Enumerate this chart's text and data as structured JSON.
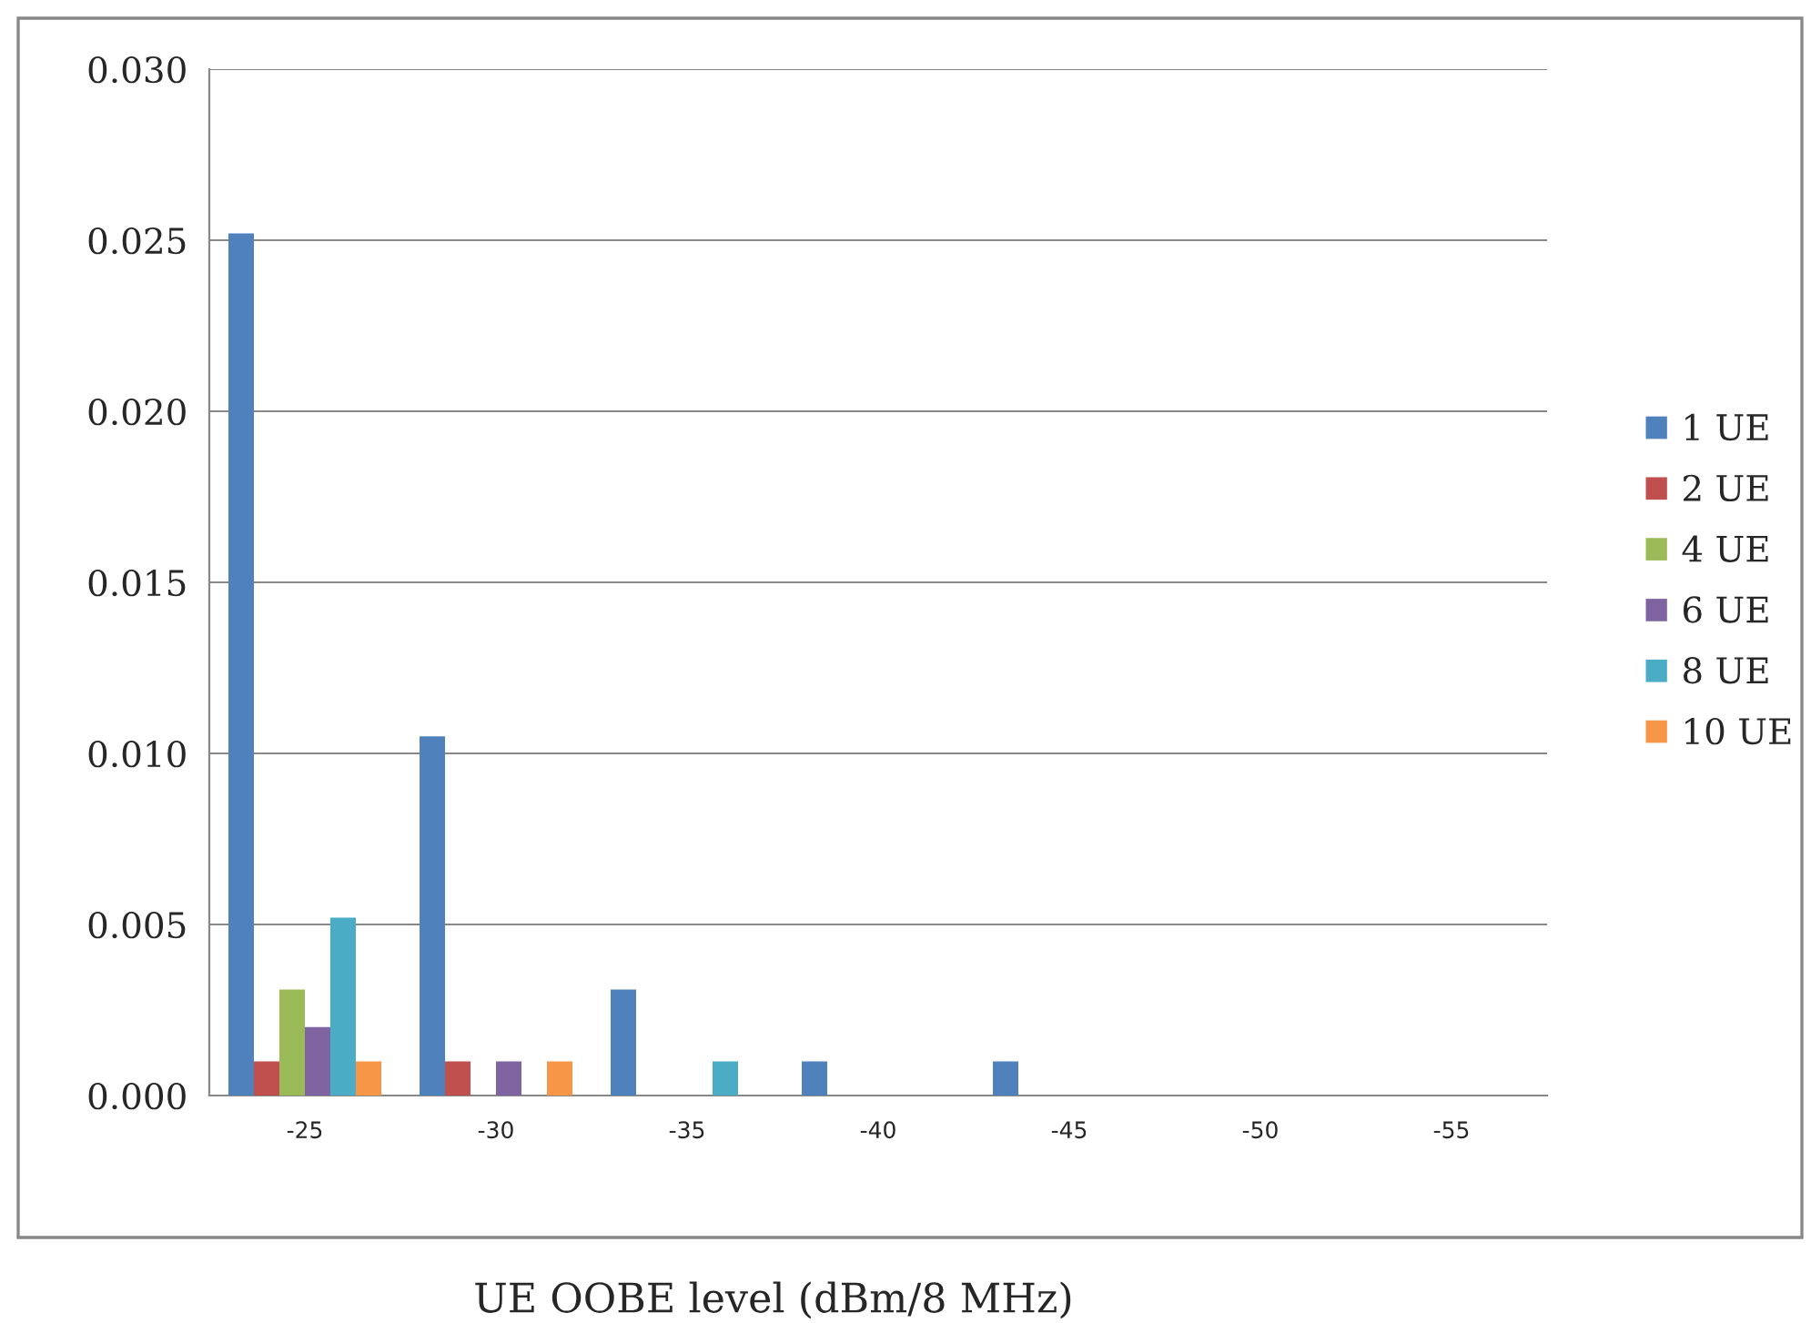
{
  "chart_data": {
    "type": "bar",
    "xlabel": "UE OOBE level (dBm/8 MHz)",
    "categories": [
      "-25",
      "-30",
      "-35",
      "-40",
      "-45",
      "-50",
      "-55"
    ],
    "series": [
      {
        "name": "1 UE",
        "color": "#4f81bd",
        "values": [
          0.0252,
          0.0105,
          0.0031,
          0.001,
          0.001,
          0,
          0
        ]
      },
      {
        "name": "2 UE",
        "color": "#c0504d",
        "values": [
          0.001,
          0.001,
          0,
          0,
          0,
          0,
          0
        ]
      },
      {
        "name": "4 UE",
        "color": "#9bbb59",
        "values": [
          0.0031,
          0,
          0,
          0,
          0,
          0,
          0
        ]
      },
      {
        "name": "6 UE",
        "color": "#8064a2",
        "values": [
          0.002,
          0.001,
          0,
          0,
          0,
          0,
          0
        ]
      },
      {
        "name": "8 UE",
        "color": "#4bacc6",
        "values": [
          0.0052,
          0,
          0.001,
          0,
          0,
          0,
          0
        ]
      },
      {
        "name": "10 UE",
        "color": "#f79646",
        "values": [
          0.001,
          0.001,
          0,
          0,
          0,
          0,
          0
        ]
      }
    ],
    "ylim": [
      0,
      0.03
    ],
    "yticks": [
      {
        "value": 0,
        "label": "0.000"
      },
      {
        "value": 0.005,
        "label": "0.005"
      },
      {
        "value": 0.01,
        "label": "0.010"
      },
      {
        "value": 0.015,
        "label": "0.015"
      },
      {
        "value": 0.02,
        "label": "0.020"
      },
      {
        "value": 0.025,
        "label": "0.025"
      },
      {
        "value": 0.03,
        "label": "0.030"
      }
    ],
    "grid": "y",
    "legend": "right"
  }
}
